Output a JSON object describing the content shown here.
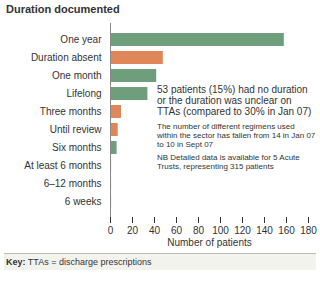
{
  "chart_data": {
    "type": "bar",
    "orientation": "horizontal",
    "title": "Duration documented",
    "categories": [
      "One year",
      "Duration absent",
      "One month",
      "Lifelong",
      "Three months",
      "Until review",
      "Six months",
      "At least 6 months",
      "6–12 months",
      "6 weeks"
    ],
    "values": [
      158,
      48,
      42,
      34,
      10,
      7,
      6,
      1,
      1,
      1
    ],
    "colors": [
      "#6f9e7c",
      "#e0875a",
      "#6f9e7c",
      "#6f9e7c",
      "#e0875a",
      "#e0875a",
      "#6f9e7c",
      "#e0875a",
      "#e0875a",
      "#e0875a"
    ],
    "xlabel": "Number of patients",
    "xlim": [
      0,
      180
    ],
    "xticks": [
      0,
      20,
      40,
      60,
      80,
      100,
      120,
      140,
      160,
      180
    ],
    "grid": false,
    "annotations": [
      "53 patients (15%) had no duration or the duration was unclear on TTAs (compared to 30% in Jan 07)",
      "The number of different regimens used within the sector has fallen from 14 in Jan 07 to 10 in Sept 07",
      "NB Detailed data is available for 5 Acute Trusts, representing 315 patients"
    ],
    "key": "Key: TTAs = discharge prescriptions"
  }
}
